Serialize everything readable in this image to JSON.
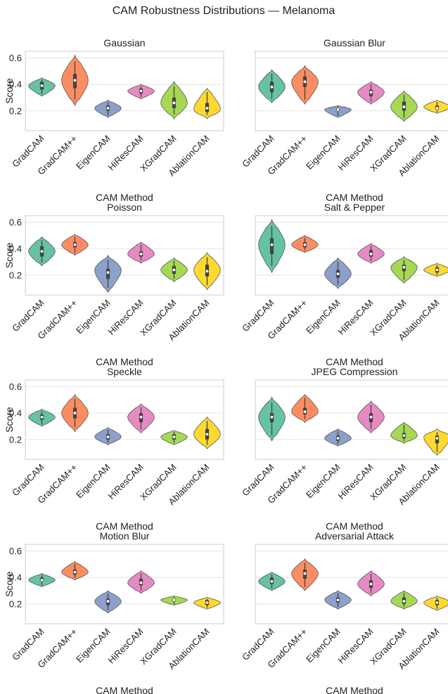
{
  "figure": {
    "title": "CAM Robustness Distributions — Melanoma"
  },
  "colors": {
    "GradCAM": "#66c2a5",
    "GradCAM++": "#fc8d62",
    "EigenCAM": "#8da0cb",
    "HiResCAM": "#e78ac3",
    "XGradCAM": "#a6d854",
    "AblationCAM": "#ffd92f"
  },
  "chart_data": [
    {
      "type": "violin",
      "title": "Gaussian",
      "xlabel": "CAM Method",
      "ylabel": "Score",
      "ylim": [
        0.05,
        0.65
      ],
      "yticks": [
        0.2,
        0.4,
        0.6
      ],
      "yticklabels": [
        "0.2",
        "0.4",
        "0.6"
      ],
      "categories": [
        "GradCAM",
        "GradCAM++",
        "EigenCAM",
        "HiResCAM",
        "XGradCAM",
        "AblationCAM"
      ],
      "series": [
        {
          "name": "GradCAM",
          "min": 0.31,
          "q1": 0.36,
          "median": 0.39,
          "q3": 0.42,
          "max": 0.45,
          "peak": 0.39
        },
        {
          "name": "GradCAM++",
          "min": 0.24,
          "q1": 0.37,
          "median": 0.43,
          "q3": 0.48,
          "max": 0.62,
          "peak": 0.43
        },
        {
          "name": "EigenCAM",
          "min": 0.15,
          "q1": 0.2,
          "median": 0.22,
          "q3": 0.24,
          "max": 0.28,
          "peak": 0.22
        },
        {
          "name": "HiResCAM",
          "min": 0.29,
          "q1": 0.33,
          "median": 0.35,
          "q3": 0.37,
          "max": 0.4,
          "peak": 0.35
        },
        {
          "name": "XGradCAM",
          "min": 0.14,
          "q1": 0.22,
          "median": 0.26,
          "q3": 0.3,
          "max": 0.42,
          "peak": 0.26
        },
        {
          "name": "AblationCAM",
          "min": 0.14,
          "q1": 0.19,
          "median": 0.22,
          "q3": 0.26,
          "max": 0.37,
          "peak": 0.21
        }
      ]
    },
    {
      "type": "violin",
      "title": "Gaussian Blur",
      "xlabel": "CAM Method",
      "ylabel": "",
      "ylim": [
        0.05,
        0.65
      ],
      "yticks": [
        0.2,
        0.4,
        0.6
      ],
      "yticklabels": [
        "",
        "",
        ""
      ],
      "categories": [
        "GradCAM",
        "GradCAM++",
        "EigenCAM",
        "HiResCAM",
        "XGradCAM",
        "AblationCAM"
      ],
      "series": [
        {
          "name": "GradCAM",
          "min": 0.26,
          "q1": 0.34,
          "median": 0.38,
          "q3": 0.42,
          "max": 0.51,
          "peak": 0.38
        },
        {
          "name": "GradCAM++",
          "min": 0.25,
          "q1": 0.38,
          "median": 0.42,
          "q3": 0.46,
          "max": 0.54,
          "peak": 0.42
        },
        {
          "name": "EigenCAM",
          "min": 0.15,
          "q1": 0.2,
          "median": 0.21,
          "q3": 0.22,
          "max": 0.24,
          "peak": 0.21
        },
        {
          "name": "HiResCAM",
          "min": 0.25,
          "q1": 0.31,
          "median": 0.34,
          "q3": 0.36,
          "max": 0.42,
          "peak": 0.34
        },
        {
          "name": "XGradCAM",
          "min": 0.12,
          "q1": 0.2,
          "median": 0.23,
          "q3": 0.27,
          "max": 0.35,
          "peak": 0.23
        },
        {
          "name": "AblationCAM",
          "min": 0.18,
          "q1": 0.21,
          "median": 0.22,
          "q3": 0.24,
          "max": 0.28,
          "peak": 0.23
        }
      ]
    },
    {
      "type": "violin",
      "title": "Poisson",
      "xlabel": "CAM Method",
      "ylabel": "Score",
      "ylim": [
        0.05,
        0.65
      ],
      "yticks": [
        0.2,
        0.4,
        0.6
      ],
      "yticklabels": [
        "0.2",
        "0.4",
        "0.6"
      ],
      "categories": [
        "GradCAM",
        "GradCAM++",
        "EigenCAM",
        "HiResCAM",
        "XGradCAM",
        "AblationCAM"
      ],
      "series": [
        {
          "name": "GradCAM",
          "min": 0.27,
          "q1": 0.34,
          "median": 0.38,
          "q3": 0.42,
          "max": 0.49,
          "peak": 0.38
        },
        {
          "name": "GradCAM++",
          "min": 0.35,
          "q1": 0.41,
          "median": 0.43,
          "q3": 0.45,
          "max": 0.51,
          "peak": 0.43
        },
        {
          "name": "EigenCAM",
          "min": 0.07,
          "q1": 0.17,
          "median": 0.22,
          "q3": 0.25,
          "max": 0.35,
          "peak": 0.24
        },
        {
          "name": "HiResCAM",
          "min": 0.29,
          "q1": 0.34,
          "median": 0.36,
          "q3": 0.38,
          "max": 0.45,
          "peak": 0.36
        },
        {
          "name": "XGradCAM",
          "min": 0.15,
          "q1": 0.21,
          "median": 0.24,
          "q3": 0.27,
          "max": 0.33,
          "peak": 0.24
        },
        {
          "name": "AblationCAM",
          "min": 0.09,
          "q1": 0.19,
          "median": 0.23,
          "q3": 0.28,
          "max": 0.37,
          "peak": 0.24
        }
      ]
    },
    {
      "type": "violin",
      "title": "Salt & Pepper",
      "xlabel": "CAM Method",
      "ylabel": "",
      "ylim": [
        0.05,
        0.65
      ],
      "yticks": [
        0.2,
        0.4,
        0.6
      ],
      "yticklabels": [
        "",
        "",
        ""
      ],
      "categories": [
        "GradCAM",
        "GradCAM++",
        "EigenCAM",
        "HiResCAM",
        "XGradCAM",
        "AblationCAM"
      ],
      "series": [
        {
          "name": "GradCAM",
          "min": 0.22,
          "q1": 0.36,
          "median": 0.43,
          "q3": 0.48,
          "max": 0.62,
          "peak": 0.43
        },
        {
          "name": "GradCAM++",
          "min": 0.37,
          "q1": 0.41,
          "median": 0.43,
          "q3": 0.45,
          "max": 0.5,
          "peak": 0.43
        },
        {
          "name": "EigenCAM",
          "min": 0.1,
          "q1": 0.18,
          "median": 0.21,
          "q3": 0.24,
          "max": 0.33,
          "peak": 0.21
        },
        {
          "name": "HiResCAM",
          "min": 0.29,
          "q1": 0.34,
          "median": 0.36,
          "q3": 0.39,
          "max": 0.44,
          "peak": 0.36
        },
        {
          "name": "XGradCAM",
          "min": 0.14,
          "q1": 0.23,
          "median": 0.26,
          "q3": 0.28,
          "max": 0.34,
          "peak": 0.26
        },
        {
          "name": "AblationCAM",
          "min": 0.19,
          "q1": 0.22,
          "median": 0.24,
          "q3": 0.26,
          "max": 0.29,
          "peak": 0.24
        }
      ]
    },
    {
      "type": "violin",
      "title": "Speckle",
      "xlabel": "CAM Method",
      "ylabel": "Score",
      "ylim": [
        0.05,
        0.65
      ],
      "yticks": [
        0.2,
        0.4,
        0.6
      ],
      "yticklabels": [
        "0.2",
        "0.4",
        "0.6"
      ],
      "categories": [
        "GradCAM",
        "GradCAM++",
        "EigenCAM",
        "HiResCAM",
        "XGradCAM",
        "AblationCAM"
      ],
      "series": [
        {
          "name": "GradCAM",
          "min": 0.3,
          "q1": 0.35,
          "median": 0.37,
          "q3": 0.39,
          "max": 0.43,
          "peak": 0.37
        },
        {
          "name": "GradCAM++",
          "min": 0.26,
          "q1": 0.36,
          "median": 0.4,
          "q3": 0.44,
          "max": 0.54,
          "peak": 0.4
        },
        {
          "name": "EigenCAM",
          "min": 0.16,
          "q1": 0.2,
          "median": 0.22,
          "q3": 0.24,
          "max": 0.29,
          "peak": 0.22
        },
        {
          "name": "HiResCAM",
          "min": 0.25,
          "q1": 0.33,
          "median": 0.37,
          "q3": 0.4,
          "max": 0.47,
          "peak": 0.37
        },
        {
          "name": "XGradCAM",
          "min": 0.16,
          "q1": 0.2,
          "median": 0.22,
          "q3": 0.24,
          "max": 0.27,
          "peak": 0.22
        },
        {
          "name": "AblationCAM",
          "min": 0.13,
          "q1": 0.2,
          "median": 0.24,
          "q3": 0.28,
          "max": 0.37,
          "peak": 0.24
        }
      ]
    },
    {
      "type": "violin",
      "title": "JPEG Compression",
      "xlabel": "CAM Method",
      "ylabel": "",
      "ylim": [
        0.05,
        0.65
      ],
      "yticks": [
        0.2,
        0.4,
        0.6
      ],
      "yticklabels": [
        "",
        "",
        ""
      ],
      "categories": [
        "GradCAM",
        "GradCAM++",
        "EigenCAM",
        "HiResCAM",
        "XGradCAM",
        "AblationCAM"
      ],
      "series": [
        {
          "name": "GradCAM",
          "min": 0.19,
          "q1": 0.33,
          "median": 0.37,
          "q3": 0.4,
          "max": 0.52,
          "peak": 0.37
        },
        {
          "name": "GradCAM++",
          "min": 0.33,
          "q1": 0.39,
          "median": 0.41,
          "q3": 0.44,
          "max": 0.54,
          "peak": 0.41
        },
        {
          "name": "EigenCAM",
          "min": 0.15,
          "q1": 0.19,
          "median": 0.21,
          "q3": 0.23,
          "max": 0.28,
          "peak": 0.21
        },
        {
          "name": "HiResCAM",
          "min": 0.25,
          "q1": 0.33,
          "median": 0.37,
          "q3": 0.4,
          "max": 0.49,
          "peak": 0.37
        },
        {
          "name": "XGradCAM",
          "min": 0.17,
          "q1": 0.21,
          "median": 0.23,
          "q3": 0.25,
          "max": 0.33,
          "peak": 0.23
        },
        {
          "name": "AblationCAM",
          "min": 0.08,
          "q1": 0.17,
          "median": 0.21,
          "q3": 0.23,
          "max": 0.28,
          "peak": 0.22
        }
      ]
    },
    {
      "type": "violin",
      "title": "Motion Blur",
      "xlabel": "CAM Method",
      "ylabel": "Score",
      "ylim": [
        0.05,
        0.65
      ],
      "yticks": [
        0.2,
        0.4,
        0.6
      ],
      "yticklabels": [
        "0.2",
        "0.4",
        "0.6"
      ],
      "categories": [
        "GradCAM",
        "GradCAM++",
        "EigenCAM",
        "HiResCAM",
        "XGradCAM",
        "AblationCAM"
      ],
      "series": [
        {
          "name": "GradCAM",
          "min": 0.33,
          "q1": 0.37,
          "median": 0.38,
          "q3": 0.4,
          "max": 0.43,
          "peak": 0.38
        },
        {
          "name": "GradCAM++",
          "min": 0.38,
          "q1": 0.42,
          "median": 0.44,
          "q3": 0.46,
          "max": 0.52,
          "peak": 0.44
        },
        {
          "name": "EigenCAM",
          "min": 0.13,
          "q1": 0.19,
          "median": 0.22,
          "q3": 0.24,
          "max": 0.3,
          "peak": 0.22
        },
        {
          "name": "HiResCAM",
          "min": 0.28,
          "q1": 0.34,
          "median": 0.36,
          "q3": 0.39,
          "max": 0.45,
          "peak": 0.36
        },
        {
          "name": "XGradCAM",
          "min": 0.19,
          "q1": 0.22,
          "median": 0.23,
          "q3": 0.24,
          "max": 0.26,
          "peak": 0.23
        },
        {
          "name": "AblationCAM",
          "min": 0.16,
          "q1": 0.19,
          "median": 0.21,
          "q3": 0.23,
          "max": 0.25,
          "peak": 0.21
        }
      ]
    },
    {
      "type": "violin",
      "title": "Adversarial Attack",
      "xlabel": "CAM Method",
      "ylabel": "",
      "ylim": [
        0.05,
        0.65
      ],
      "yticks": [
        0.2,
        0.4,
        0.6
      ],
      "yticklabels": [
        "",
        "",
        ""
      ],
      "categories": [
        "GradCAM",
        "GradCAM++",
        "EigenCAM",
        "HiResCAM",
        "XGradCAM",
        "AblationCAM"
      ],
      "series": [
        {
          "name": "GradCAM",
          "min": 0.3,
          "q1": 0.35,
          "median": 0.37,
          "q3": 0.4,
          "max": 0.44,
          "peak": 0.37
        },
        {
          "name": "GradCAM++",
          "min": 0.3,
          "q1": 0.39,
          "median": 0.43,
          "q3": 0.46,
          "max": 0.54,
          "peak": 0.43
        },
        {
          "name": "EigenCAM",
          "min": 0.16,
          "q1": 0.21,
          "median": 0.23,
          "q3": 0.25,
          "max": 0.3,
          "peak": 0.23
        },
        {
          "name": "HiResCAM",
          "min": 0.26,
          "q1": 0.32,
          "median": 0.35,
          "q3": 0.38,
          "max": 0.45,
          "peak": 0.35
        },
        {
          "name": "XGradCAM",
          "min": 0.16,
          "q1": 0.2,
          "median": 0.22,
          "q3": 0.25,
          "max": 0.3,
          "peak": 0.22
        },
        {
          "name": "AblationCAM",
          "min": 0.15,
          "q1": 0.19,
          "median": 0.21,
          "q3": 0.23,
          "max": 0.26,
          "peak": 0.21
        }
      ]
    }
  ]
}
